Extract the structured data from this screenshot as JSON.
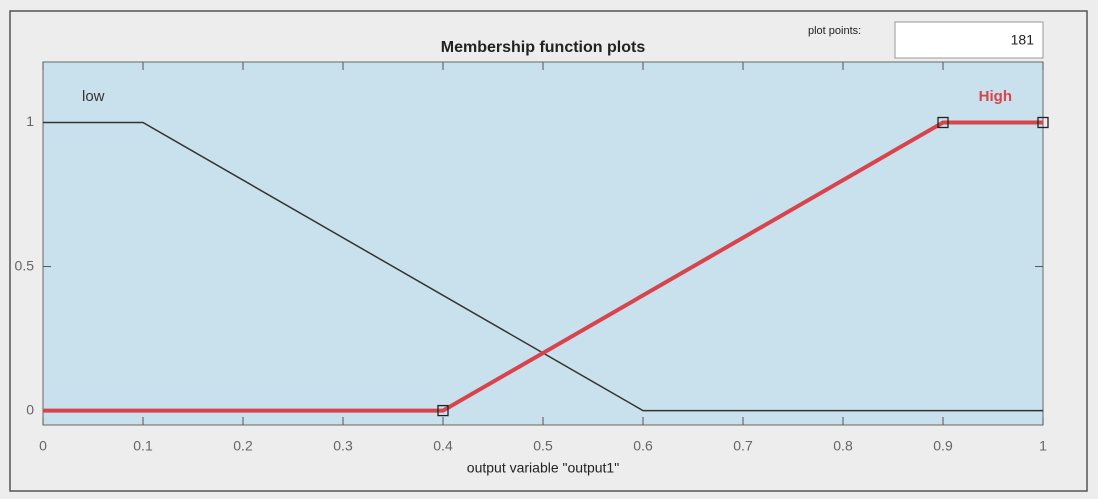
{
  "plot_points_label": "plot points:",
  "plot_points_value": "181",
  "chart_data": {
    "type": "line",
    "title": "Membership function plots",
    "x_label": "output variable \"output1\"",
    "series": [
      {
        "name": "low",
        "color": "#333333",
        "x": [
          0,
          0.1,
          0.6,
          1
        ],
        "values": [
          1,
          1,
          0,
          0
        ]
      },
      {
        "name": "High",
        "color": "#d9434c",
        "x": [
          0,
          0.4,
          0.9,
          1
        ],
        "values": [
          0,
          0,
          1,
          1
        ],
        "marker": "square"
      }
    ],
    "xlim": [
      0,
      1
    ],
    "xticks": [
      0,
      0.1,
      0.2,
      0.3,
      0.4,
      0.5,
      0.6,
      0.7,
      0.8,
      0.9,
      1
    ],
    "ylim": [
      -0.05,
      1.21
    ],
    "yticks": [
      0,
      0.5,
      1
    ]
  }
}
